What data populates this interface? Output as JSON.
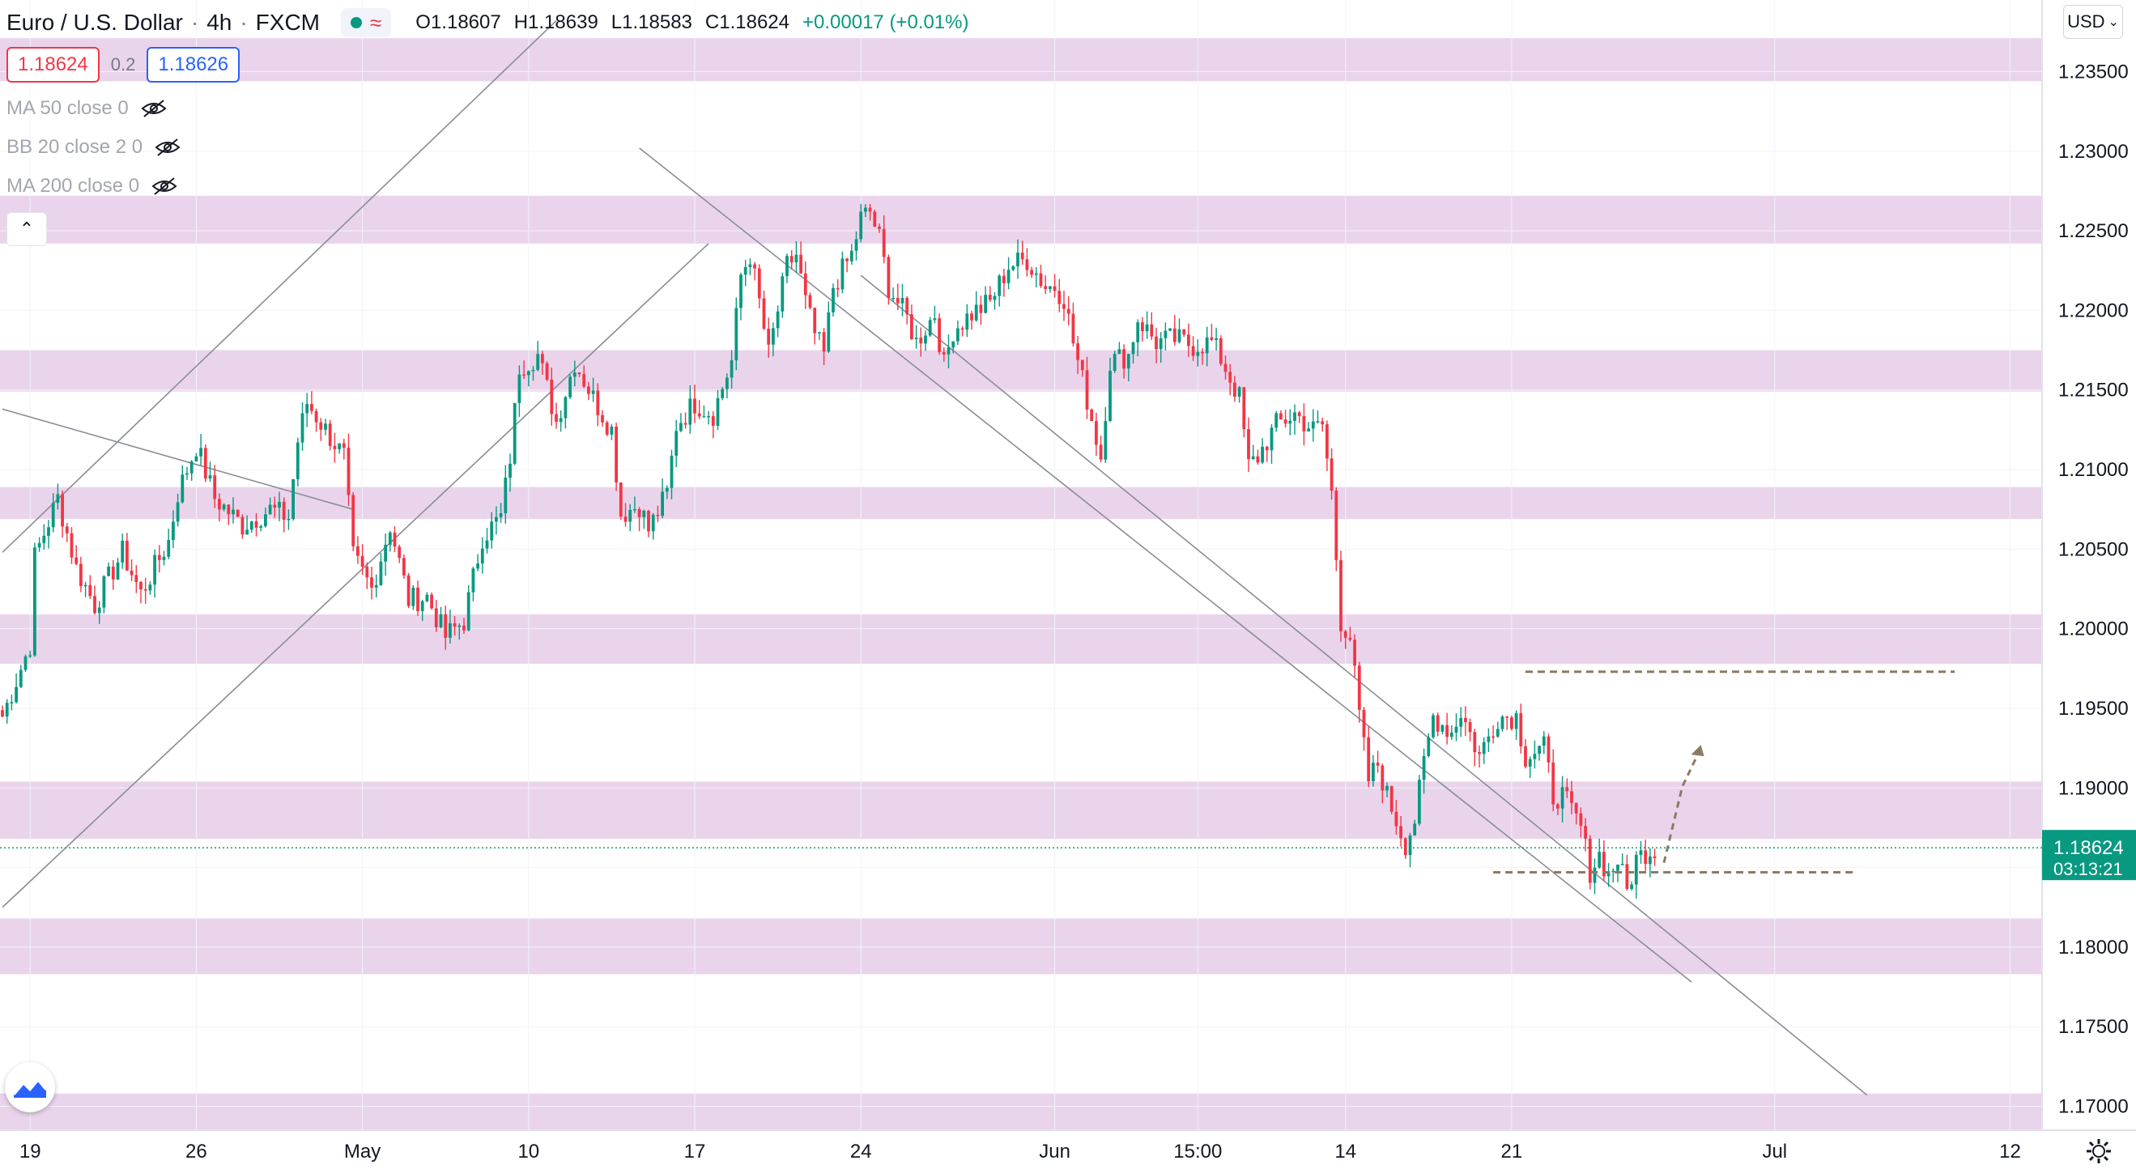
{
  "header": {
    "symbol": "Euro / U.S. Dollar",
    "interval": "4h",
    "exchange": "FXCM",
    "open": "O1.18607",
    "high": "H1.18639",
    "low": "L1.18583",
    "close": "C1.18624",
    "change": "+0.00017 (+0.01%)",
    "status_icon": "market-open-dot",
    "wave_icon": "wave-icon"
  },
  "trade": {
    "sell_price": "1.18624",
    "spread": "0.2",
    "buy_price": "1.18626"
  },
  "indicators": [
    {
      "label": "MA 50 close 0",
      "icon": "eye-hidden-icon"
    },
    {
      "label": "BB 20 close 2 0",
      "icon": "eye-hidden-icon"
    },
    {
      "label": "MA 200 close 0",
      "icon": "eye-hidden-icon"
    }
  ],
  "currency_button": "USD",
  "colors": {
    "up": "#089981",
    "down": "#f23645",
    "zone": "#e6cde9",
    "price_label": "#089981",
    "projection": "#8c7b62"
  },
  "chart_data": {
    "type": "candlestick",
    "timeframe": "4h",
    "ylim": [
      1.1685,
      1.2395
    ],
    "y_ticks": [
      1.235,
      1.23,
      1.225,
      1.22,
      1.215,
      1.21,
      1.205,
      1.2,
      1.195,
      1.19,
      1.185,
      1.18,
      1.175,
      1.17
    ],
    "y_tick_labels": [
      "1.23500",
      "1.23000",
      "1.22500",
      "1.22000",
      "1.21500",
      "1.21000",
      "1.20500",
      "1.20000",
      "1.19500",
      "1.19000",
      "1.18500",
      "1.18000",
      "1.17500",
      "1.17000"
    ],
    "x_ticks": [
      {
        "label": "19",
        "bar": 6
      },
      {
        "label": "26",
        "bar": 42
      },
      {
        "label": "May",
        "bar": 78
      },
      {
        "label": "10",
        "bar": 114
      },
      {
        "label": "17",
        "bar": 150
      },
      {
        "label": "24",
        "bar": 186
      },
      {
        "label": "Jun",
        "bar": 228
      },
      {
        "label": "15:00",
        "bar": 259
      },
      {
        "label": "14",
        "bar": 291
      },
      {
        "label": "21",
        "bar": 327
      },
      {
        "label": "Jul",
        "bar": 384
      },
      {
        "label": "12",
        "bar": 435
      }
    ],
    "last_price": 1.18624,
    "last_price_label": "1.18624",
    "countdown": "03:13:21",
    "zones": [
      [
        1.2344,
        1.2371
      ],
      [
        1.2242,
        1.2272
      ],
      [
        1.2149,
        1.2175
      ],
      [
        1.2069,
        1.2089
      ],
      [
        1.1978,
        1.2009
      ],
      [
        1.1868,
        1.1904
      ],
      [
        1.1783,
        1.1818
      ],
      [
        1.1677,
        1.1708
      ]
    ],
    "path": [
      [
        0,
        1.1945
      ],
      [
        6,
        1.199
      ],
      [
        7,
        1.2045
      ],
      [
        12,
        1.2082
      ],
      [
        16,
        1.2038
      ],
      [
        20,
        1.2015
      ],
      [
        26,
        1.2048
      ],
      [
        30,
        1.2022
      ],
      [
        36,
        1.2055
      ],
      [
        38,
        1.2085
      ],
      [
        42,
        1.2115
      ],
      [
        46,
        1.2082
      ],
      [
        52,
        1.2065
      ],
      [
        58,
        1.2075
      ],
      [
        62,
        1.207
      ],
      [
        64,
        1.2118
      ],
      [
        66,
        1.2142
      ],
      [
        70,
        1.2125
      ],
      [
        74,
        1.2108
      ],
      [
        76,
        1.2045
      ],
      [
        80,
        1.2025
      ],
      [
        84,
        1.2065
      ],
      [
        88,
        1.2018
      ],
      [
        92,
        1.202
      ],
      [
        96,
        1.1995
      ],
      [
        100,
        1.2005
      ],
      [
        104,
        1.2058
      ],
      [
        108,
        1.207
      ],
      [
        110,
        1.2108
      ],
      [
        112,
        1.2165
      ],
      [
        116,
        1.2172
      ],
      [
        120,
        1.213
      ],
      [
        124,
        1.2168
      ],
      [
        128,
        1.2145
      ],
      [
        132,
        1.2125
      ],
      [
        134,
        1.2072
      ],
      [
        138,
        1.2078
      ],
      [
        140,
        1.2062
      ],
      [
        144,
        1.2085
      ],
      [
        146,
        1.2128
      ],
      [
        150,
        1.2142
      ],
      [
        154,
        1.2135
      ],
      [
        158,
        1.2168
      ],
      [
        160,
        1.2222
      ],
      [
        162,
        1.2235
      ],
      [
        164,
        1.2205
      ],
      [
        166,
        1.2172
      ],
      [
        170,
        1.2228
      ],
      [
        172,
        1.2235
      ],
      [
        174,
        1.2205
      ],
      [
        176,
        1.2185
      ],
      [
        178,
        1.2172
      ],
      [
        180,
        1.2215
      ],
      [
        184,
        1.2235
      ],
      [
        186,
        1.2258
      ],
      [
        188,
        1.2262
      ],
      [
        190,
        1.2245
      ],
      [
        192,
        1.2215
      ],
      [
        196,
        1.2195
      ],
      [
        198,
        1.218
      ],
      [
        202,
        1.2198
      ],
      [
        204,
        1.2165
      ],
      [
        206,
        1.2188
      ],
      [
        210,
        1.2198
      ],
      [
        214,
        1.2205
      ],
      [
        218,
        1.2228
      ],
      [
        222,
        1.2232
      ],
      [
        226,
        1.2215
      ],
      [
        228,
        1.2215
      ],
      [
        230,
        1.2208
      ],
      [
        232,
        1.218
      ],
      [
        236,
        1.2132
      ],
      [
        238,
        1.2108
      ],
      [
        240,
        1.2168
      ],
      [
        244,
        1.2172
      ],
      [
        246,
        1.2195
      ],
      [
        250,
        1.218
      ],
      [
        254,
        1.2182
      ],
      [
        258,
        1.2178
      ],
      [
        262,
        1.218
      ],
      [
        264,
        1.217
      ],
      [
        268,
        1.2145
      ],
      [
        270,
        1.2102
      ],
      [
        272,
        1.2108
      ],
      [
        276,
        1.2128
      ],
      [
        280,
        1.2135
      ],
      [
        284,
        1.2125
      ],
      [
        286,
        1.2128
      ],
      [
        288,
        1.2085
      ],
      [
        290,
        1.2005
      ],
      [
        292,
        1.1995
      ],
      [
        294,
        1.1945
      ],
      [
        296,
        1.1905
      ],
      [
        298,
        1.1915
      ],
      [
        300,
        1.1895
      ],
      [
        304,
        1.1865
      ],
      [
        306,
        1.188
      ],
      [
        308,
        1.1915
      ],
      [
        310,
        1.1945
      ],
      [
        314,
        1.1935
      ],
      [
        316,
        1.1948
      ],
      [
        320,
        1.192
      ],
      [
        324,
        1.1945
      ],
      [
        328,
        1.1945
      ],
      [
        330,
        1.192
      ],
      [
        334,
        1.1925
      ],
      [
        336,
        1.1895
      ],
      [
        338,
        1.1895
      ],
      [
        340,
        1.1885
      ],
      [
        342,
        1.1875
      ],
      [
        344,
        1.1848
      ],
      [
        346,
        1.1858
      ],
      [
        348,
        1.1845
      ],
      [
        350,
        1.1855
      ],
      [
        352,
        1.1835
      ],
      [
        354,
        1.1855
      ],
      [
        356,
        1.186
      ],
      [
        358,
        1.1862
      ]
    ],
    "overlays": {
      "channel_lines": [
        [
          [
            0,
            1.2048
          ],
          [
            120,
            1.2382
          ]
        ],
        [
          [
            0,
            1.1825
          ],
          [
            153,
            1.2242
          ]
        ],
        [
          [
            0,
            1.2138
          ],
          [
            76,
            1.2075
          ]
        ],
        [
          [
            138,
            1.2302
          ],
          [
            366,
            1.1778
          ]
        ],
        [
          [
            186,
            1.2222
          ],
          [
            404,
            1.1707
          ]
        ]
      ],
      "levels": [
        {
          "price": 1.1973,
          "from": 330,
          "to": 423
        },
        {
          "price": 1.1847,
          "from": 323,
          "to": 401
        }
      ],
      "projection_arrow": [
        [
          360,
          1.1853
        ],
        [
          364,
          1.1901
        ],
        [
          368,
          1.1925
        ]
      ]
    }
  }
}
